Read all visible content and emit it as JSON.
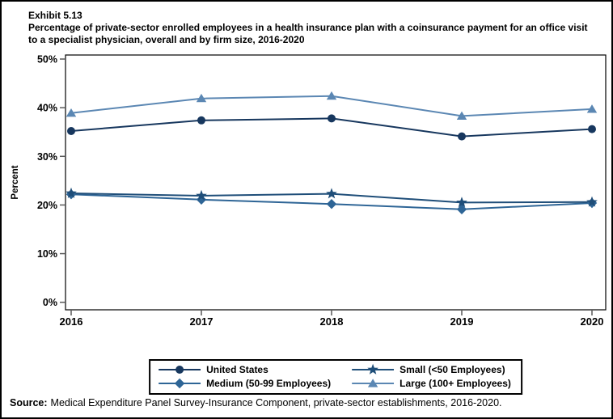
{
  "header": {
    "exhibit_label": "Exhibit 5.13",
    "title": "Percentage of private-sector enrolled employees in a health insurance plan with a coinsurance payment for an office visit to a specialist physician, overall and by firm size, 2016-2020"
  },
  "footer": {
    "source_label": "Source:",
    "source_text": "Medical Expenditure Panel Survey-Insurance Component, private-sector establishments, 2016-2020."
  },
  "chart_data": {
    "type": "line",
    "x_categories": [
      "2016",
      "2017",
      "2018",
      "2019",
      "2020"
    ],
    "ylabel": "Percent",
    "ylim": [
      0,
      50
    ],
    "ytick_step": 10,
    "ytick_labels": [
      "0%",
      "10%",
      "20%",
      "30%",
      "40%",
      "50%"
    ],
    "grid": false,
    "legend_position": "bottom-box-two-columns",
    "series": [
      {
        "name": "United States",
        "marker": "circle",
        "color": "#17375e",
        "values": [
          35.2,
          37.4,
          37.8,
          34.1,
          35.6
        ]
      },
      {
        "name": "Medium (50-99 Employees)",
        "marker": "diamond",
        "color": "#2e6596",
        "values": [
          22.2,
          21.1,
          20.2,
          19.1,
          20.4
        ]
      },
      {
        "name": "Small (<50 Employees)",
        "marker": "star",
        "color": "#1f4e79",
        "values": [
          22.4,
          21.9,
          22.3,
          20.5,
          20.6
        ]
      },
      {
        "name": "Large (100+ Employees)",
        "marker": "triangle",
        "color": "#5b87b3",
        "values": [
          38.9,
          41.9,
          42.4,
          38.3,
          39.7
        ]
      }
    ],
    "legend_row_major_order": [
      "United States",
      "Small (<50 Employees)",
      "Medium (50-99 Employees)",
      "Large (100+ Employees)"
    ]
  }
}
